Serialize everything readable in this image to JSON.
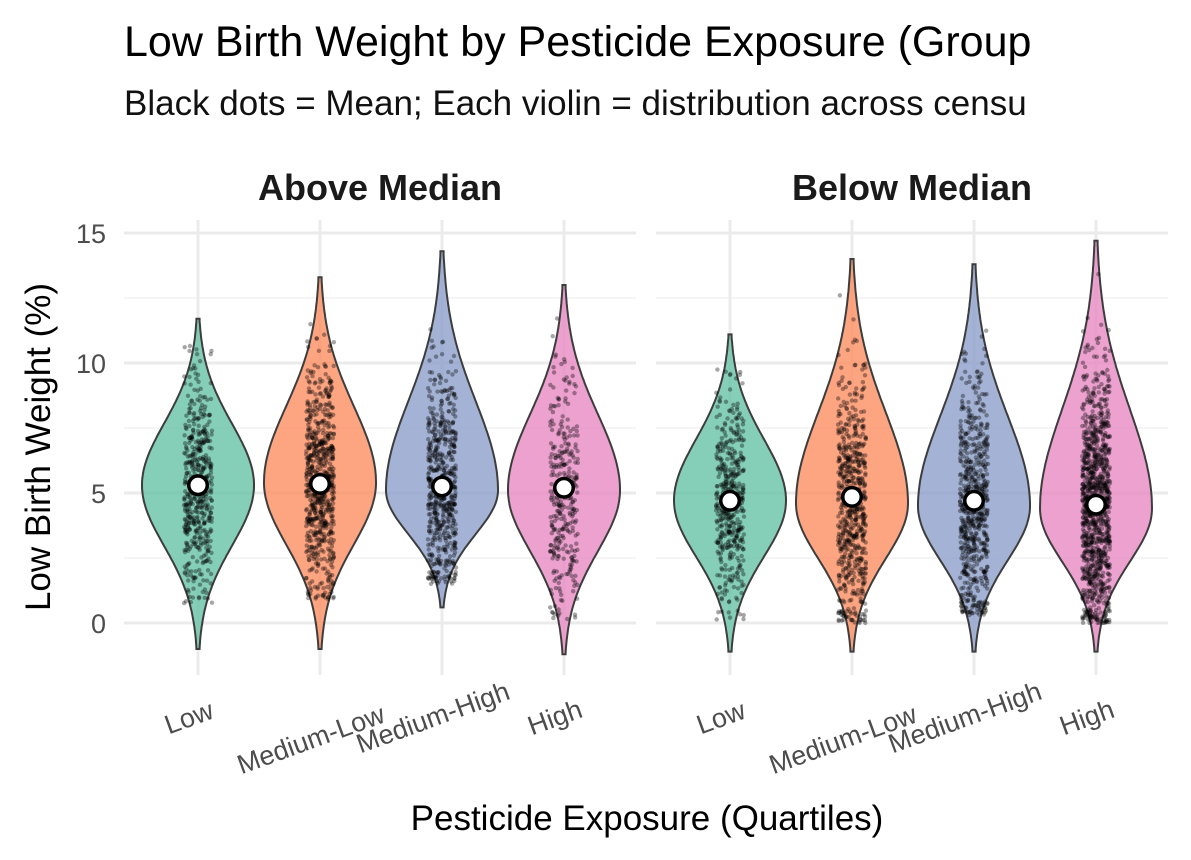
{
  "chart_data": {
    "type": "violin",
    "title": "Low Birth Weight by Pesticide Exposure (Group",
    "subtitle": "Black dots = Mean; Each violin = distribution across censu",
    "xlabel": "Pesticide Exposure (Quartiles)",
    "ylabel": "Low Birth Weight (%)",
    "ylim": [
      -2,
      15.5
    ],
    "y_ticks": [
      0,
      5,
      10,
      15
    ],
    "categories": [
      "Low",
      "Medium-Low",
      "Medium-High",
      "High"
    ],
    "category_colors": [
      "#66c2a5",
      "#fc8d62",
      "#8da0cb",
      "#e78ac3"
    ],
    "grid": true,
    "legend": "none",
    "facets": [
      {
        "label": "Above Median",
        "groups": [
          {
            "category": "Low",
            "mean": 5.3,
            "mode": 5.3,
            "min": -1.0,
            "max": 11.7,
            "data_low": 0.7,
            "data_high": 10.7,
            "n_points": 500
          },
          {
            "category": "Medium-Low",
            "mean": 5.35,
            "mode": 5.4,
            "min": -1.0,
            "max": 13.3,
            "data_low": 0.9,
            "data_high": 12.3,
            "n_points": 700
          },
          {
            "category": "Medium-High",
            "mean": 5.25,
            "mode": 5.1,
            "min": 0.6,
            "max": 14.3,
            "data_low": 1.5,
            "data_high": 13.4,
            "n_points": 600
          },
          {
            "category": "High",
            "mean": 5.2,
            "mode": 5.1,
            "min": -1.2,
            "max": 13.0,
            "data_low": 0.0,
            "data_high": 11.8,
            "n_points": 330
          }
        ]
      },
      {
        "label": "Below Median",
        "groups": [
          {
            "category": "Low",
            "mean": 4.7,
            "mode": 4.7,
            "min": -1.1,
            "max": 11.1,
            "data_low": 0.0,
            "data_high": 9.9,
            "n_points": 450
          },
          {
            "category": "Medium-Low",
            "mean": 4.85,
            "mode": 4.6,
            "min": -1.1,
            "max": 14.0,
            "data_low": 0.0,
            "data_high": 12.7,
            "n_points": 650
          },
          {
            "category": "Medium-High",
            "mean": 4.7,
            "mode": 4.5,
            "min": -1.1,
            "max": 13.8,
            "data_low": 0.3,
            "data_high": 12.7,
            "n_points": 650
          },
          {
            "category": "High",
            "mean": 4.55,
            "mode": 4.4,
            "min": -1.1,
            "max": 14.7,
            "data_low": 0.0,
            "data_high": 13.7,
            "n_points": 1100
          }
        ]
      }
    ]
  }
}
